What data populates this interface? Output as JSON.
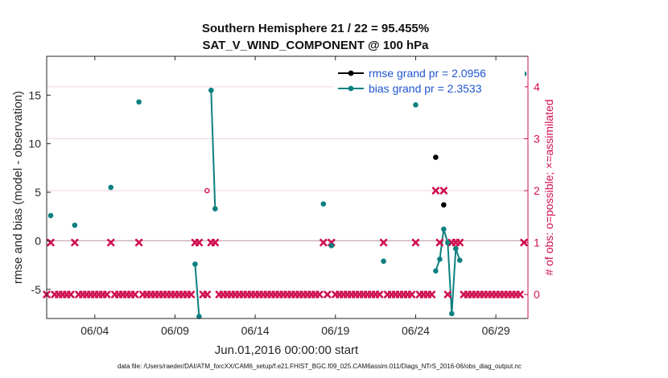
{
  "chart_data": {
    "type": "scatter",
    "title": "Southern Hemisphere 21 / 22 = 95.455%",
    "subtitle": "SAT_V_WIND_COMPONENT @ 100 hPa",
    "xlabel": "Jun.01,2016 00:00:00 start",
    "ylabel": "rmse and bias (model - observation)",
    "ylabel_right": "# of obs: o=possible; ×=assimilated",
    "xlim": [
      1.0,
      31.0
    ],
    "ylim": [
      -8,
      19
    ],
    "ylim_right": [
      -0.4625,
      4.5875
    ],
    "xticks": [
      {
        "x": 4,
        "label": "06/04"
      },
      {
        "x": 9,
        "label": "06/09"
      },
      {
        "x": 14,
        "label": "06/14"
      },
      {
        "x": 19,
        "label": "06/19"
      },
      {
        "x": 24,
        "label": "06/24"
      },
      {
        "x": 29,
        "label": "06/29"
      }
    ],
    "yticks": [
      {
        "v": -5,
        "label": "-5"
      },
      {
        "v": 0,
        "label": "0"
      },
      {
        "v": 5,
        "label": "5"
      },
      {
        "v": 10,
        "label": "10"
      },
      {
        "v": 15,
        "label": "15"
      }
    ],
    "yticks_right": [
      {
        "v": 0,
        "label": "0"
      },
      {
        "v": 1,
        "label": "1"
      },
      {
        "v": 2,
        "label": "2"
      },
      {
        "v": 3,
        "label": "3"
      },
      {
        "v": 4,
        "label": "4"
      }
    ],
    "colors": {
      "rmse": "#000000",
      "bias": "#0e8080",
      "obs": "#d01050",
      "zero_line": "#c8a8b8",
      "grid": "#f2d2dc"
    },
    "legend": {
      "position": "top-right",
      "entries": [
        {
          "label": "rmse grand pr = 2.0956",
          "series": "rmse"
        },
        {
          "label": "bias grand pr = 2.3533",
          "series": "bias"
        }
      ]
    },
    "series": [
      {
        "name": "rmse",
        "points": [
          {
            "x": 25.25,
            "y": 8.6
          },
          {
            "x": 25.75,
            "y": 3.7
          }
        ]
      },
      {
        "name": "bias",
        "points": [
          {
            "x": 1.25,
            "y": 2.6
          },
          {
            "x": 2.75,
            "y": 1.6
          },
          {
            "x": 5.0,
            "y": 5.5
          },
          {
            "x": 6.75,
            "y": 14.3
          },
          {
            "x": 10.25,
            "y": -2.4
          },
          {
            "x": 10.5,
            "y": -7.8
          },
          {
            "x": 11.25,
            "y": 15.5
          },
          {
            "x": 11.5,
            "y": 3.3
          },
          {
            "x": 18.25,
            "y": 3.8
          },
          {
            "x": 18.75,
            "y": -0.5
          },
          {
            "x": 22.0,
            "y": -2.1
          },
          {
            "x": 24.0,
            "y": 14.0
          },
          {
            "x": 25.25,
            "y": -3.1
          },
          {
            "x": 25.5,
            "y": -1.9
          },
          {
            "x": 25.75,
            "y": 1.2
          },
          {
            "x": 26.0,
            "y": -0.2
          },
          {
            "x": 26.25,
            "y": -7.5
          },
          {
            "x": 26.5,
            "y": -0.8
          },
          {
            "x": 26.75,
            "y": -2.0
          },
          {
            "x": 30.75,
            "y": 17.2
          }
        ],
        "lines": [
          [
            [
              10.25,
              -2.4
            ],
            [
              10.5,
              -7.8
            ]
          ],
          [
            [
              11.25,
              15.5
            ],
            [
              11.5,
              3.3
            ]
          ],
          [
            [
              25.25,
              -3.1
            ],
            [
              25.5,
              -1.9
            ],
            [
              25.75,
              1.2
            ],
            [
              26.0,
              -0.2
            ],
            [
              26.25,
              -7.5
            ],
            [
              26.5,
              -0.8
            ],
            [
              26.75,
              -2.0
            ]
          ]
        ]
      }
    ],
    "obs_possible": [
      {
        "x": 11.0,
        "count": 2
      }
    ],
    "obs_assimilated": [
      {
        "x": 1.0,
        "count": 0
      },
      {
        "x": 1.25,
        "count": 1
      },
      {
        "x": 1.5,
        "count": 0
      },
      {
        "x": 1.75,
        "count": 0
      },
      {
        "x": 2.0,
        "count": 0
      },
      {
        "x": 2.25,
        "count": 0
      },
      {
        "x": 2.5,
        "count": 0
      },
      {
        "x": 2.75,
        "count": 1
      },
      {
        "x": 3.0,
        "count": 0
      },
      {
        "x": 3.25,
        "count": 0
      },
      {
        "x": 3.5,
        "count": 0
      },
      {
        "x": 3.75,
        "count": 0
      },
      {
        "x": 4.0,
        "count": 0
      },
      {
        "x": 4.25,
        "count": 0
      },
      {
        "x": 4.5,
        "count": 0
      },
      {
        "x": 4.75,
        "count": 0
      },
      {
        "x": 5.0,
        "count": 1
      },
      {
        "x": 5.25,
        "count": 0
      },
      {
        "x": 5.5,
        "count": 0
      },
      {
        "x": 5.75,
        "count": 0
      },
      {
        "x": 6.0,
        "count": 0
      },
      {
        "x": 6.25,
        "count": 0
      },
      {
        "x": 6.5,
        "count": 0
      },
      {
        "x": 6.75,
        "count": 1
      },
      {
        "x": 7.0,
        "count": 0
      },
      {
        "x": 7.25,
        "count": 0
      },
      {
        "x": 7.5,
        "count": 0
      },
      {
        "x": 7.75,
        "count": 0
      },
      {
        "x": 8.0,
        "count": 0
      },
      {
        "x": 8.25,
        "count": 0
      },
      {
        "x": 8.5,
        "count": 0
      },
      {
        "x": 8.75,
        "count": 0
      },
      {
        "x": 9.0,
        "count": 0
      },
      {
        "x": 9.25,
        "count": 0
      },
      {
        "x": 9.5,
        "count": 0
      },
      {
        "x": 9.75,
        "count": 0
      },
      {
        "x": 10.0,
        "count": 0
      },
      {
        "x": 10.25,
        "count": 1
      },
      {
        "x": 10.5,
        "count": 1
      },
      {
        "x": 10.75,
        "count": 0
      },
      {
        "x": 11.0,
        "count": 0
      },
      {
        "x": 11.25,
        "count": 1
      },
      {
        "x": 11.5,
        "count": 1
      },
      {
        "x": 11.75,
        "count": 0
      },
      {
        "x": 12.0,
        "count": 0
      },
      {
        "x": 12.25,
        "count": 0
      },
      {
        "x": 12.5,
        "count": 0
      },
      {
        "x": 12.75,
        "count": 0
      },
      {
        "x": 13.0,
        "count": 0
      },
      {
        "x": 13.25,
        "count": 0
      },
      {
        "x": 13.5,
        "count": 0
      },
      {
        "x": 13.75,
        "count": 0
      },
      {
        "x": 14.0,
        "count": 0
      },
      {
        "x": 14.25,
        "count": 0
      },
      {
        "x": 14.5,
        "count": 0
      },
      {
        "x": 14.75,
        "count": 0
      },
      {
        "x": 15.0,
        "count": 0
      },
      {
        "x": 15.25,
        "count": 0
      },
      {
        "x": 15.5,
        "count": 0
      },
      {
        "x": 15.75,
        "count": 0
      },
      {
        "x": 16.0,
        "count": 0
      },
      {
        "x": 16.25,
        "count": 0
      },
      {
        "x": 16.5,
        "count": 0
      },
      {
        "x": 16.75,
        "count": 0
      },
      {
        "x": 17.0,
        "count": 0
      },
      {
        "x": 17.25,
        "count": 0
      },
      {
        "x": 17.5,
        "count": 0
      },
      {
        "x": 17.75,
        "count": 0
      },
      {
        "x": 18.0,
        "count": 0
      },
      {
        "x": 18.25,
        "count": 1
      },
      {
        "x": 18.5,
        "count": 0
      },
      {
        "x": 18.75,
        "count": 1
      },
      {
        "x": 19.0,
        "count": 0
      },
      {
        "x": 19.25,
        "count": 0
      },
      {
        "x": 19.5,
        "count": 0
      },
      {
        "x": 19.75,
        "count": 0
      },
      {
        "x": 20.0,
        "count": 0
      },
      {
        "x": 20.25,
        "count": 0
      },
      {
        "x": 20.5,
        "count": 0
      },
      {
        "x": 20.75,
        "count": 0
      },
      {
        "x": 21.0,
        "count": 0
      },
      {
        "x": 21.25,
        "count": 0
      },
      {
        "x": 21.5,
        "count": 0
      },
      {
        "x": 21.75,
        "count": 0
      },
      {
        "x": 22.0,
        "count": 1
      },
      {
        "x": 22.25,
        "count": 0
      },
      {
        "x": 22.5,
        "count": 0
      },
      {
        "x": 22.75,
        "count": 0
      },
      {
        "x": 23.0,
        "count": 0
      },
      {
        "x": 23.25,
        "count": 0
      },
      {
        "x": 23.5,
        "count": 0
      },
      {
        "x": 23.75,
        "count": 0
      },
      {
        "x": 24.0,
        "count": 1
      },
      {
        "x": 24.25,
        "count": 0
      },
      {
        "x": 24.5,
        "count": 0
      },
      {
        "x": 24.75,
        "count": 0
      },
      {
        "x": 25.0,
        "count": 0
      },
      {
        "x": 25.25,
        "count": 2
      },
      {
        "x": 25.5,
        "count": 1
      },
      {
        "x": 25.75,
        "count": 2
      },
      {
        "x": 26.0,
        "count": 0
      },
      {
        "x": 26.25,
        "count": 1
      },
      {
        "x": 26.5,
        "count": 1
      },
      {
        "x": 26.75,
        "count": 1
      },
      {
        "x": 27.0,
        "count": 0
      },
      {
        "x": 27.25,
        "count": 0
      },
      {
        "x": 27.5,
        "count": 0
      },
      {
        "x": 27.75,
        "count": 0
      },
      {
        "x": 28.0,
        "count": 0
      },
      {
        "x": 28.25,
        "count": 0
      },
      {
        "x": 28.5,
        "count": 0
      },
      {
        "x": 28.75,
        "count": 0
      },
      {
        "x": 29.0,
        "count": 0
      },
      {
        "x": 29.25,
        "count": 0
      },
      {
        "x": 29.5,
        "count": 0
      },
      {
        "x": 29.75,
        "count": 0
      },
      {
        "x": 30.0,
        "count": 0
      },
      {
        "x": 30.25,
        "count": 0
      },
      {
        "x": 30.5,
        "count": 0
      },
      {
        "x": 30.75,
        "count": 1
      }
    ],
    "footer": "data file: /Users/raeder/DAI/ATM_forcXX/CAM6_setup/f.e21.FHIST_BGC.f09_025.CAM6assim.011/Diags_NTrS_2016-06/obs_diag_output.nc"
  }
}
